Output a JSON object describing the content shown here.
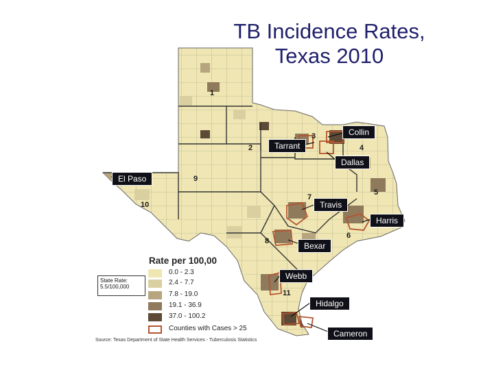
{
  "title_line1": "TB Incidence Rates,",
  "title_line2": "Texas 2010",
  "legend": {
    "title": "Rate per 100,00",
    "items": [
      {
        "label": "0.0 - 2.3",
        "color": "#efe6b3"
      },
      {
        "label": "2.4 - 7.7",
        "color": "#d9cfa0"
      },
      {
        "label": "7.8 - 19.0",
        "color": "#b6a57e"
      },
      {
        "label": "19.1 - 36.9",
        "color": "#8f7a5c"
      },
      {
        "label": "37.0 - 100.2",
        "color": "#5d4a36"
      },
      {
        "label": "Counties with Cases > 25",
        "color": "#b5542e"
      }
    ]
  },
  "state_rate": "State Rate: 5.5/100,000",
  "source": "Source: Texas Department of State Health Services - Tuberculosis Statistics",
  "region_numbers": [
    "1",
    "2",
    "3",
    "4",
    "5",
    "6",
    "7",
    "8",
    "9",
    "10",
    "11"
  ],
  "callouts": {
    "collin": "Collin",
    "tarrant": "Tarrant",
    "dallas": "Dallas",
    "el_paso": "El Paso",
    "travis": "Travis",
    "harris": "Harris",
    "bexar": "Bexar",
    "webb": "Webb",
    "hidalgo": "Hidalgo",
    "cameron": "Cameron"
  }
}
